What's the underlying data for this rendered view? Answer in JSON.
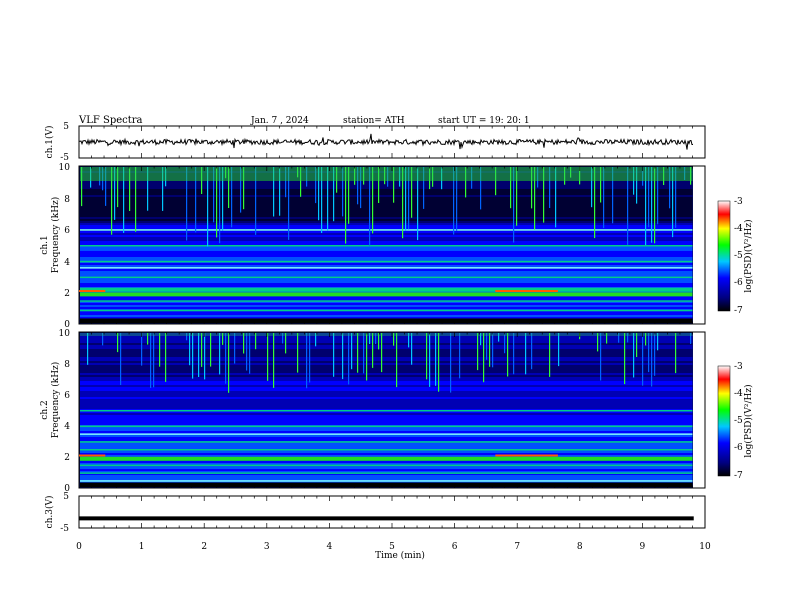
{
  "header": {
    "title": "VLF  Spectra",
    "date": "Jan.  7  , 2024",
    "station": "station= ATH",
    "start": "start  UT  =    19: 20: 1"
  },
  "chart_data": [
    {
      "type": "line",
      "name": "ch1-waveform",
      "ylabel": "ch.1(V)",
      "ylim": [
        -5,
        5
      ],
      "yticks": [
        "5",
        "-5"
      ],
      "xlim": [
        0,
        10
      ],
      "baseline": 0,
      "color": "#000000"
    },
    {
      "type": "heatmap",
      "name": "ch2-spectrogram",
      "ylabel_line1": "ch.1",
      "ylabel_line2": "Frequency (kHz)",
      "ylim": [
        0,
        10
      ],
      "yticks": [
        "10",
        "8",
        "6",
        "4",
        "2",
        "0"
      ],
      "xlim": [
        0,
        9.8
      ],
      "colorbar": {
        "label": "log(PSD)(V²/Hz)",
        "range": [
          -7,
          -3
        ],
        "ticks": [
          "-3",
          "-4",
          "-5",
          "-6",
          "-7"
        ]
      },
      "bands_khz": [
        0.3,
        0.9,
        1.5,
        2.0,
        2.3,
        3.0,
        3.6,
        4.0,
        5.0,
        6.0
      ],
      "burst_frequency_khz": 10
    },
    {
      "type": "heatmap",
      "name": "ch2b-spectrogram",
      "ylabel_line1": "ch.2",
      "ylabel_line2": "Frequency (kHz)",
      "ylim": [
        0,
        10
      ],
      "yticks": [
        "10",
        "8",
        "6",
        "4",
        "2",
        "0"
      ],
      "xlim": [
        0,
        9.8
      ],
      "colorbar": {
        "label": "log(PSD)(V²/Hz)",
        "range": [
          -7,
          -3
        ],
        "ticks": [
          "-3",
          "-4",
          "-5",
          "-6",
          "-7"
        ]
      },
      "bands_khz": [
        0.5,
        1.0,
        1.5,
        2.0,
        2.5,
        3.0,
        3.5,
        4.0,
        5.0
      ],
      "burst_frequency_khz": 10
    },
    {
      "type": "line",
      "name": "ch3-waveform",
      "ylabel": "ch.3(V)",
      "ylim": [
        -5,
        5
      ],
      "yticks": [
        "5",
        "-5"
      ],
      "xlim": [
        0,
        10
      ],
      "baseline": -2.0,
      "color": "#000000"
    }
  ],
  "x_axis": {
    "label": "Time  (min)",
    "ticks": [
      "0",
      "1",
      "2",
      "3",
      "4",
      "5",
      "6",
      "7",
      "8",
      "9",
      "10"
    ]
  }
}
